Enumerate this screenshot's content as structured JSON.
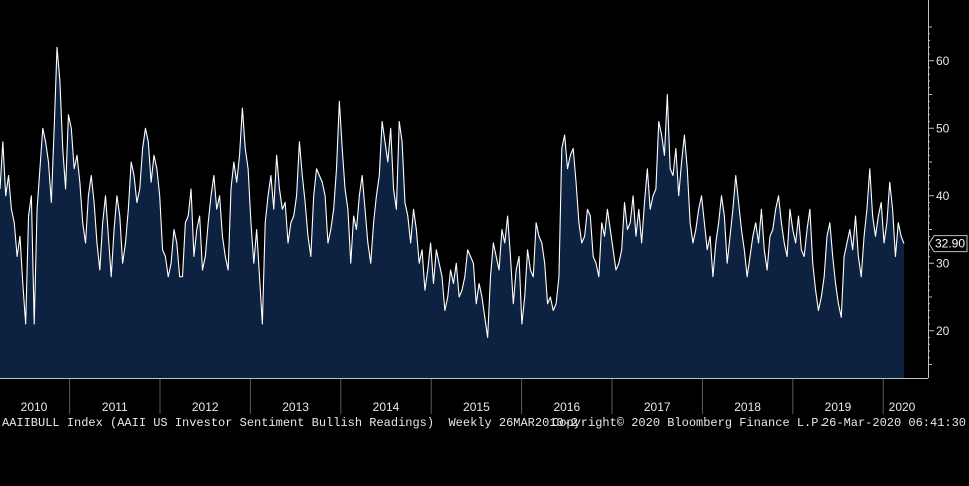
{
  "colors": {
    "background": "#000000",
    "area_fill": "#0d2240",
    "line": "#ffffff",
    "axis": "#bfbfbf"
  },
  "last_value_label": "32.90",
  "footer": {
    "left": "AAIIBULL Index (AAII US Investor Sentiment Bullish Readings)  Weekly 26MAR2010-2",
    "mid": "Copyright© 2020 Bloomberg Finance L.P.",
    "right": "26-Mar-2020 06:41:30"
  },
  "chart_data": {
    "type": "area",
    "title": "",
    "xlabel": "",
    "ylabel": "",
    "ylim": [
      13,
      69
    ],
    "yticks": [
      20,
      30,
      40,
      50,
      60
    ],
    "xlim": [
      2010.23,
      2020.23
    ],
    "year_labels": [
      "2010",
      "2011",
      "2012",
      "2013",
      "2014",
      "2015",
      "2016",
      "2017",
      "2018",
      "2019",
      "2020"
    ],
    "last_value": 32.9,
    "series": [
      {
        "values": [
          41,
          48,
          40,
          43,
          38,
          36,
          31,
          34,
          27,
          21,
          37,
          40,
          21,
          38,
          44,
          50,
          48,
          45,
          39,
          50,
          62,
          57,
          47,
          41,
          52,
          50,
          44,
          46,
          42,
          36,
          33,
          40,
          43,
          39,
          33,
          29,
          36,
          40,
          34,
          28,
          35,
          40,
          37,
          30,
          33,
          38,
          45,
          43,
          39,
          41,
          47,
          50,
          48,
          42,
          46,
          44,
          40,
          32,
          31,
          28,
          30,
          35,
          33,
          28,
          28,
          36,
          37,
          41,
          31,
          35,
          37,
          29,
          31,
          36,
          40,
          43,
          38,
          40,
          34,
          31,
          29,
          41,
          45,
          42,
          46,
          53,
          47,
          44,
          36,
          30,
          35,
          28,
          21,
          36,
          40,
          43,
          38,
          46,
          41,
          38,
          39,
          33,
          36,
          37,
          40,
          48,
          43,
          39,
          34,
          31,
          40,
          44,
          43,
          42,
          40,
          33,
          35,
          38,
          44,
          54,
          47,
          41,
          38,
          30,
          37,
          35,
          40,
          43,
          38,
          33,
          30,
          36,
          40,
          43,
          51,
          48,
          45,
          50,
          41,
          38,
          51,
          48,
          39,
          37,
          33,
          38,
          35,
          30,
          32,
          26,
          29,
          33,
          27,
          32,
          30,
          28,
          23,
          25,
          29,
          27,
          30,
          25,
          26,
          28,
          32,
          31,
          30,
          24,
          27,
          25,
          22,
          19,
          28,
          33,
          31,
          29,
          35,
          33,
          37,
          31,
          24,
          29,
          31,
          21,
          25,
          32,
          29,
          28,
          36,
          34,
          33,
          30,
          24,
          25,
          23,
          24,
          28,
          47,
          49,
          44,
          46,
          47,
          42,
          36,
          33,
          34,
          38,
          37,
          31,
          30,
          28,
          36,
          34,
          38,
          35,
          32,
          29,
          30,
          32,
          39,
          35,
          36,
          40,
          34,
          38,
          33,
          39,
          44,
          38,
          40,
          41,
          51,
          49,
          46,
          55,
          44,
          43,
          47,
          40,
          45,
          49,
          44,
          36,
          33,
          35,
          38,
          40,
          36,
          32,
          34,
          28,
          33,
          36,
          40,
          37,
          30,
          34,
          38,
          43,
          39,
          35,
          32,
          28,
          31,
          34,
          36,
          33,
          38,
          32,
          29,
          34,
          35,
          38,
          40,
          36,
          33,
          31,
          38,
          35,
          33,
          37,
          32,
          31,
          35,
          38,
          30,
          26,
          23,
          25,
          28,
          34,
          36,
          31,
          27,
          24,
          22,
          31,
          33,
          35,
          32,
          37,
          31,
          28,
          34,
          38,
          44,
          37,
          34,
          37,
          39,
          33,
          36,
          42,
          38,
          31,
          36,
          34,
          32.9
        ]
      }
    ]
  }
}
